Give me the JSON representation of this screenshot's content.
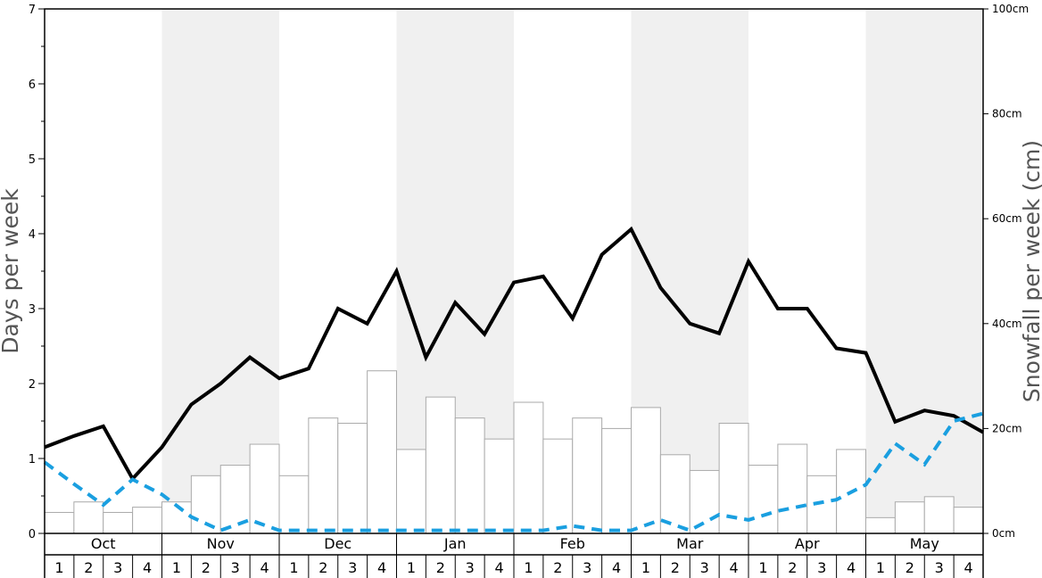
{
  "chart_data": {
    "type": "bar+line",
    "ylabel_left": "Days per week",
    "ylabel_right": "Snowfall per week (cm)",
    "ylim_left": [
      0,
      7
    ],
    "ylim_right": [
      0,
      100
    ],
    "left_ticks": [
      "0",
      "1",
      "2",
      "3",
      "4",
      "5",
      "6",
      "7"
    ],
    "right_ticks": [
      "0cm",
      "20cm",
      "40cm",
      "60cm",
      "80cm",
      "100cm"
    ],
    "months": [
      "Oct",
      "Nov",
      "Dec",
      "Jan",
      "Feb",
      "Mar",
      "Apr",
      "May"
    ],
    "weeks": [
      "1",
      "2",
      "3",
      "4"
    ],
    "snowfall_cm": [
      4,
      6,
      4,
      5,
      6,
      11,
      13,
      17,
      11,
      22,
      21,
      31,
      16,
      26,
      22,
      18,
      25,
      18,
      22,
      20,
      24,
      15,
      12,
      21,
      13,
      17,
      11,
      16,
      3,
      6,
      7,
      5
    ],
    "series": [
      {
        "values": [
          1.15,
          1.3,
          1.43,
          0.73,
          1.15,
          1.72,
          2.0,
          2.35,
          2.07,
          2.2,
          3.0,
          2.8,
          3.5,
          2.35,
          3.08,
          2.66,
          3.35,
          3.43,
          2.87,
          3.72,
          4.06,
          3.28,
          2.8,
          2.67,
          3.63,
          3.0,
          3.0,
          2.47,
          2.41,
          1.49,
          1.64,
          1.57,
          1.35
        ],
        "style": "solid",
        "color": "#000000"
      },
      {
        "values": [
          0.95,
          0.66,
          0.38,
          0.72,
          0.52,
          0.22,
          0.04,
          0.18,
          0.04,
          0.04,
          0.04,
          0.04,
          0.04,
          0.04,
          0.04,
          0.04,
          0.04,
          0.04,
          0.1,
          0.04,
          0.04,
          0.18,
          0.04,
          0.25,
          0.18,
          0.3,
          0.38,
          0.45,
          0.65,
          1.2,
          0.92,
          1.5,
          1.6
        ],
        "style": "dashed",
        "color": "#1a9fe0"
      }
    ],
    "shaded_months": [
      "Nov",
      "Jan",
      "Mar",
      "May"
    ],
    "shade_color": "#f0f0f0"
  }
}
